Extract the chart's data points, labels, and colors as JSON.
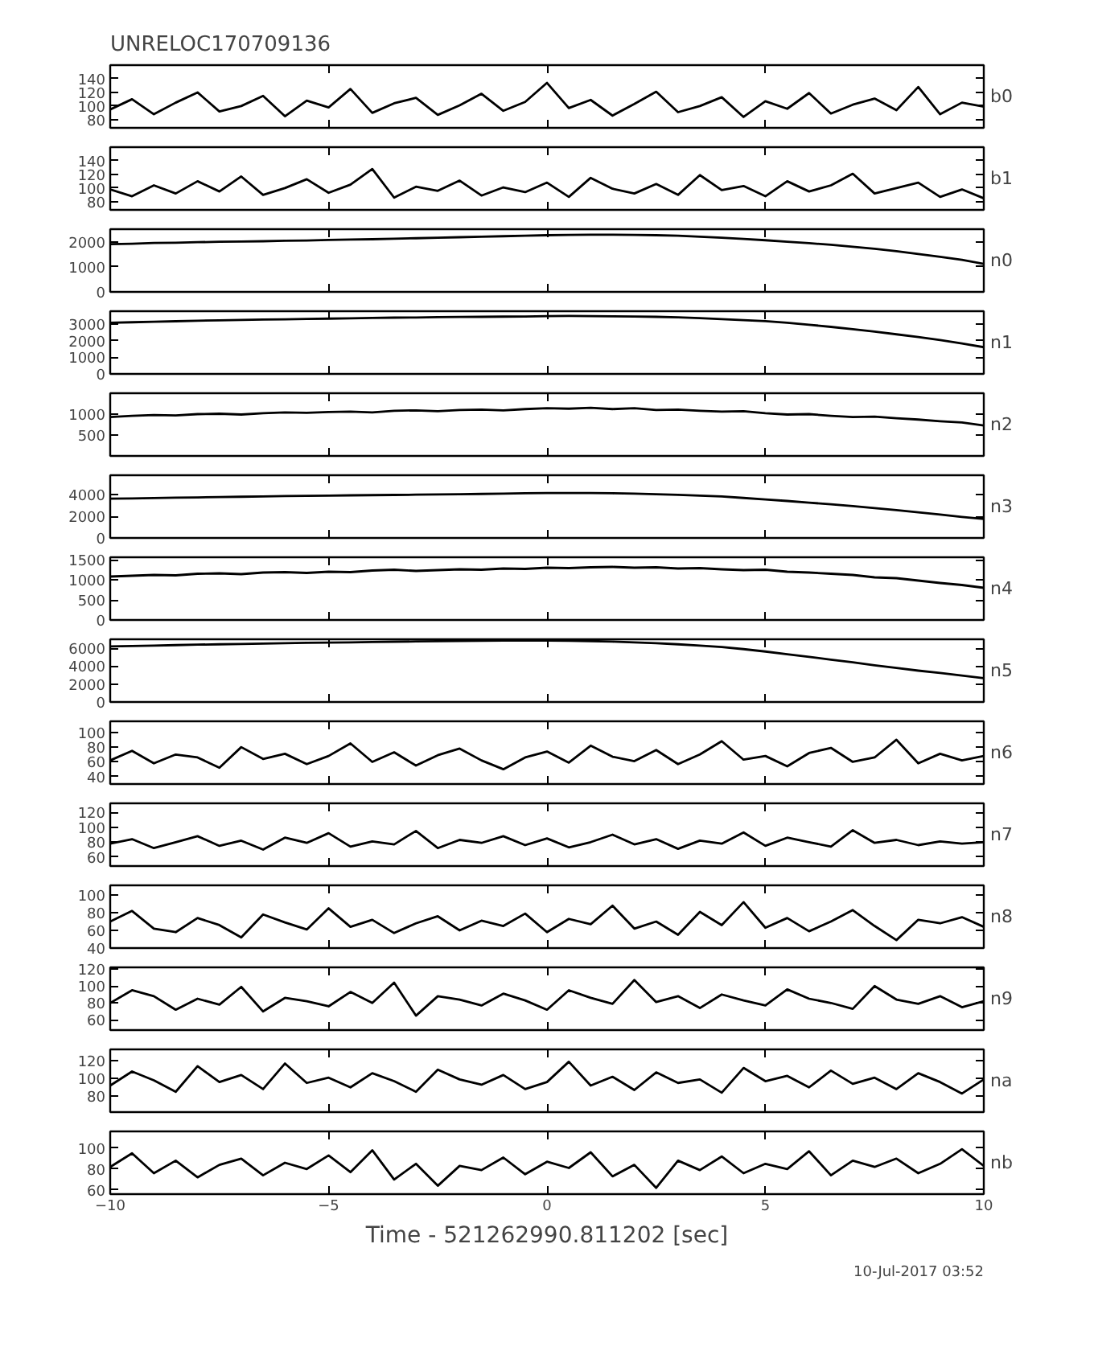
{
  "chart_data": [
    {
      "type": "line",
      "title": "UNRELOC170709136",
      "xlim": [
        -10,
        10
      ],
      "xticks": [
        -10,
        -5,
        0,
        5,
        10
      ],
      "ylim": [
        68,
        160
      ],
      "yticks": [
        80,
        100,
        120,
        140
      ],
      "tick_labels": "y",
      "grid": false,
      "x": [
        -10,
        -9.5,
        -9,
        -8.5,
        -8,
        -7.5,
        -7,
        -6.5,
        -6,
        -5.5,
        -5,
        -4.5,
        -4,
        -3.5,
        -3,
        -2.5,
        -2,
        -1.5,
        -1,
        -0.5,
        0,
        0.5,
        1,
        1.5,
        2,
        2.5,
        3,
        3.5,
        4,
        4.5,
        5,
        5.5,
        6,
        6.5,
        7,
        7.5,
        8,
        8.5,
        9,
        9.5,
        10
      ],
      "series": [
        {
          "name": "b0",
          "color": "#000000",
          "values": [
            95,
            110,
            88,
            105,
            120,
            92,
            100,
            115,
            85,
            108,
            98,
            125,
            90,
            104,
            112,
            87,
            101,
            118,
            93,
            106,
            134,
            97,
            109,
            86,
            103,
            121,
            91,
            100,
            113,
            84,
            107,
            96,
            119,
            89,
            102,
            111,
            94,
            128,
            88,
            105,
            99
          ]
        }
      ]
    },
    {
      "type": "line",
      "xlim": [
        -10,
        10
      ],
      "xticks": [
        -10,
        -5,
        0,
        5,
        10
      ],
      "ylim": [
        68,
        160
      ],
      "yticks": [
        80,
        100,
        120,
        140
      ],
      "tick_labels": "y",
      "grid": false,
      "x": [
        -10,
        -9.5,
        -9,
        -8.5,
        -8,
        -7.5,
        -7,
        -6.5,
        -6,
        -5.5,
        -5,
        -4.5,
        -4,
        -3.5,
        -3,
        -2.5,
        -2,
        -1.5,
        -1,
        -0.5,
        0,
        0.5,
        1,
        1.5,
        2,
        2.5,
        3,
        3.5,
        4,
        4.5,
        5,
        5.5,
        6,
        6.5,
        7,
        7.5,
        8,
        8.5,
        9,
        9.5,
        10
      ],
      "series": [
        {
          "name": "b1",
          "color": "#000000",
          "values": [
            98,
            88,
            104,
            92,
            110,
            95,
            117,
            90,
            100,
            113,
            93,
            105,
            128,
            86,
            102,
            96,
            111,
            89,
            101,
            94,
            108,
            87,
            115,
            99,
            92,
            106,
            90,
            119,
            97,
            103,
            88,
            110,
            95,
            104,
            121,
            92,
            100,
            108,
            87,
            98,
            85
          ]
        }
      ]
    },
    {
      "type": "line",
      "xlim": [
        -10,
        10
      ],
      "xticks": [
        -10,
        -5,
        0,
        5,
        10
      ],
      "ylim": [
        0,
        2500
      ],
      "yticks": [
        0,
        1000,
        2000
      ],
      "tick_labels": "y",
      "grid": false,
      "x": [
        -10,
        -9.5,
        -9,
        -8.5,
        -8,
        -7.5,
        -7,
        -6.5,
        -6,
        -5.5,
        -5,
        -4.5,
        -4,
        -3.5,
        -3,
        -2.5,
        -2,
        -1.5,
        -1,
        -0.5,
        0,
        0.5,
        1,
        1.5,
        2,
        2.5,
        3,
        3.5,
        4,
        4.5,
        5,
        5.5,
        6,
        6.5,
        7,
        7.5,
        8,
        8.5,
        9,
        9.5,
        10
      ],
      "series": [
        {
          "name": "n0",
          "color": "#000000",
          "values": [
            1900,
            1920,
            1950,
            1960,
            1980,
            2000,
            2010,
            2020,
            2040,
            2050,
            2070,
            2090,
            2100,
            2120,
            2140,
            2160,
            2180,
            2200,
            2220,
            2240,
            2260,
            2270,
            2280,
            2280,
            2270,
            2260,
            2240,
            2200,
            2160,
            2110,
            2060,
            2000,
            1940,
            1880,
            1800,
            1720,
            1620,
            1510,
            1400,
            1280,
            1120
          ]
        }
      ]
    },
    {
      "type": "line",
      "xlim": [
        -10,
        10
      ],
      "xticks": [
        -10,
        -5,
        0,
        5,
        10
      ],
      "ylim": [
        0,
        3800
      ],
      "yticks": [
        0,
        1000,
        2000,
        3000
      ],
      "tick_labels": "y",
      "grid": false,
      "x": [
        -10,
        -9.5,
        -9,
        -8.5,
        -8,
        -7.5,
        -7,
        -6.5,
        -6,
        -5.5,
        -5,
        -4.5,
        -4,
        -3.5,
        -3,
        -2.5,
        -2,
        -1.5,
        -1,
        -0.5,
        0,
        0.5,
        1,
        1.5,
        2,
        2.5,
        3,
        3.5,
        4,
        4.5,
        5,
        5.5,
        6,
        6.5,
        7,
        7.5,
        8,
        8.5,
        9,
        9.5,
        10
      ],
      "series": [
        {
          "name": "n1",
          "color": "#000000",
          "values": [
            3100,
            3130,
            3160,
            3190,
            3220,
            3250,
            3270,
            3290,
            3310,
            3330,
            3350,
            3370,
            3390,
            3410,
            3420,
            3440,
            3450,
            3460,
            3470,
            3480,
            3500,
            3510,
            3500,
            3490,
            3480,
            3460,
            3430,
            3380,
            3320,
            3260,
            3200,
            3100,
            2980,
            2850,
            2710,
            2560,
            2400,
            2230,
            2050,
            1850,
            1620
          ]
        }
      ]
    },
    {
      "type": "line",
      "xlim": [
        -10,
        10
      ],
      "xticks": [
        -10,
        -5,
        0,
        5,
        10
      ],
      "ylim": [
        0,
        1500
      ],
      "yticks": [
        500,
        1000
      ],
      "tick_labels": "y",
      "grid": false,
      "x": [
        -10,
        -9.5,
        -9,
        -8.5,
        -8,
        -7.5,
        -7,
        -6.5,
        -6,
        -5.5,
        -5,
        -4.5,
        -4,
        -3.5,
        -3,
        -2.5,
        -2,
        -1.5,
        -1,
        -0.5,
        0,
        0.5,
        1,
        1.5,
        2,
        2.5,
        3,
        3.5,
        4,
        4.5,
        5,
        5.5,
        6,
        6.5,
        7,
        7.5,
        8,
        8.5,
        9,
        9.5,
        10
      ],
      "series": [
        {
          "name": "n2",
          "color": "#000000",
          "values": [
            930,
            960,
            980,
            970,
            1000,
            1010,
            990,
            1020,
            1040,
            1030,
            1050,
            1060,
            1040,
            1080,
            1090,
            1070,
            1100,
            1110,
            1090,
            1120,
            1140,
            1130,
            1150,
            1120,
            1140,
            1100,
            1110,
            1080,
            1060,
            1070,
            1020,
            990,
            1000,
            960,
            930,
            940,
            900,
            870,
            830,
            800,
            730
          ]
        }
      ]
    },
    {
      "type": "line",
      "xlim": [
        -10,
        10
      ],
      "xticks": [
        -10,
        -5,
        0,
        5,
        10
      ],
      "ylim": [
        0,
        5800
      ],
      "yticks": [
        0,
        2000,
        4000
      ],
      "tick_labels": "y",
      "grid": false,
      "x": [
        -10,
        -9.5,
        -9,
        -8.5,
        -8,
        -7.5,
        -7,
        -6.5,
        -6,
        -5.5,
        -5,
        -4.5,
        -4,
        -3.5,
        -3,
        -2.5,
        -2,
        -1.5,
        -1,
        -0.5,
        0,
        0.5,
        1,
        1.5,
        2,
        2.5,
        3,
        3.5,
        4,
        4.5,
        5,
        5.5,
        6,
        6.5,
        7,
        7.5,
        8,
        8.5,
        9,
        9.5,
        10
      ],
      "series": [
        {
          "name": "n3",
          "color": "#000000",
          "values": [
            3630,
            3660,
            3690,
            3720,
            3750,
            3780,
            3810,
            3840,
            3870,
            3900,
            3920,
            3940,
            3960,
            3980,
            4000,
            4020,
            4040,
            4070,
            4100,
            4130,
            4160,
            4160,
            4150,
            4130,
            4100,
            4050,
            3990,
            3920,
            3840,
            3700,
            3560,
            3420,
            3270,
            3110,
            2940,
            2760,
            2570,
            2370,
            2160,
            1950,
            1760
          ]
        }
      ]
    },
    {
      "type": "line",
      "xlim": [
        -10,
        10
      ],
      "xticks": [
        -10,
        -5,
        0,
        5,
        10
      ],
      "ylim": [
        0,
        1560
      ],
      "yticks": [
        0,
        500,
        1000,
        1500
      ],
      "tick_labels": "y",
      "grid": false,
      "x": [
        -10,
        -9.5,
        -9,
        -8.5,
        -8,
        -7.5,
        -7,
        -6.5,
        -6,
        -5.5,
        -5,
        -4.5,
        -4,
        -3.5,
        -3,
        -2.5,
        -2,
        -1.5,
        -1,
        -0.5,
        0,
        0.5,
        1,
        1.5,
        2,
        2.5,
        3,
        3.5,
        4,
        4.5,
        5,
        5.5,
        6,
        6.5,
        7,
        7.5,
        8,
        8.5,
        9,
        9.5,
        10
      ],
      "series": [
        {
          "name": "n4",
          "color": "#000000",
          "values": [
            1080,
            1100,
            1120,
            1110,
            1150,
            1160,
            1140,
            1180,
            1190,
            1170,
            1200,
            1190,
            1230,
            1250,
            1220,
            1240,
            1260,
            1250,
            1280,
            1270,
            1300,
            1290,
            1310,
            1320,
            1300,
            1310,
            1280,
            1290,
            1260,
            1240,
            1250,
            1200,
            1180,
            1150,
            1120,
            1060,
            1040,
            980,
            920,
            870,
            800
          ]
        }
      ]
    },
    {
      "type": "line",
      "xlim": [
        -10,
        10
      ],
      "xticks": [
        -10,
        -5,
        0,
        5,
        10
      ],
      "ylim": [
        0,
        7000
      ],
      "yticks": [
        0,
        2000,
        4000,
        6000
      ],
      "tick_labels": "y",
      "grid": false,
      "x": [
        -10,
        -9.5,
        -9,
        -8.5,
        -8,
        -7.5,
        -7,
        -6.5,
        -6,
        -5.5,
        -5,
        -4.5,
        -4,
        -3.5,
        -3,
        -2.5,
        -2,
        -1.5,
        -1,
        -0.5,
        0,
        0.5,
        1,
        1.5,
        2,
        2.5,
        3,
        3.5,
        4,
        4.5,
        5,
        5.5,
        6,
        6.5,
        7,
        7.5,
        8,
        8.5,
        9,
        9.5,
        10
      ],
      "series": [
        {
          "name": "n5",
          "color": "#000000",
          "values": [
            6200,
            6250,
            6300,
            6350,
            6400,
            6440,
            6480,
            6520,
            6560,
            6600,
            6630,
            6660,
            6700,
            6730,
            6760,
            6790,
            6820,
            6840,
            6850,
            6850,
            6850,
            6830,
            6800,
            6740,
            6650,
            6560,
            6440,
            6300,
            6130,
            5900,
            5630,
            5330,
            5030,
            4730,
            4430,
            4100,
            3800,
            3500,
            3250,
            2950,
            2650
          ]
        }
      ]
    },
    {
      "type": "line",
      "xlim": [
        -10,
        10
      ],
      "xticks": [
        -10,
        -5,
        0,
        5,
        10
      ],
      "ylim": [
        30,
        115
      ],
      "yticks": [
        40,
        60,
        80,
        100
      ],
      "tick_labels": "y",
      "grid": false,
      "x": [
        -10,
        -9.5,
        -9,
        -8.5,
        -8,
        -7.5,
        -7,
        -6.5,
        -6,
        -5.5,
        -5,
        -4.5,
        -4,
        -3.5,
        -3,
        -2.5,
        -2,
        -1.5,
        -1,
        -0.5,
        0,
        0.5,
        1,
        1.5,
        2,
        2.5,
        3,
        3.5,
        4,
        4.5,
        5,
        5.5,
        6,
        6.5,
        7,
        7.5,
        8,
        8.5,
        9,
        9.5,
        10
      ],
      "series": [
        {
          "name": "n6",
          "color": "#000000",
          "values": [
            62,
            75,
            58,
            70,
            66,
            52,
            80,
            64,
            71,
            57,
            68,
            85,
            60,
            73,
            55,
            69,
            78,
            62,
            50,
            66,
            74,
            59,
            82,
            67,
            61,
            76,
            57,
            70,
            88,
            63,
            68,
            54,
            72,
            79,
            60,
            66,
            90,
            58,
            71,
            62,
            68
          ]
        }
      ]
    },
    {
      "type": "line",
      "xlim": [
        -10,
        10
      ],
      "xticks": [
        -10,
        -5,
        0,
        5,
        10
      ],
      "ylim": [
        48,
        132
      ],
      "yticks": [
        60,
        80,
        100,
        120
      ],
      "tick_labels": "y",
      "grid": false,
      "x": [
        -10,
        -9.5,
        -9,
        -8.5,
        -8,
        -7.5,
        -7,
        -6.5,
        -6,
        -5.5,
        -5,
        -4.5,
        -4,
        -3.5,
        -3,
        -2.5,
        -2,
        -1.5,
        -1,
        -0.5,
        0,
        0.5,
        1,
        1.5,
        2,
        2.5,
        3,
        3.5,
        4,
        4.5,
        5,
        5.5,
        6,
        6.5,
        7,
        7.5,
        8,
        8.5,
        9,
        9.5,
        10
      ],
      "series": [
        {
          "name": "n7",
          "color": "#000000",
          "values": [
            78,
            84,
            72,
            80,
            88,
            75,
            82,
            70,
            86,
            79,
            92,
            74,
            81,
            77,
            95,
            72,
            83,
            79,
            88,
            76,
            85,
            73,
            80,
            90,
            77,
            84,
            71,
            82,
            78,
            93,
            75,
            86,
            80,
            74,
            96,
            79,
            83,
            76,
            81,
            78,
            80
          ]
        }
      ]
    },
    {
      "type": "line",
      "xlim": [
        -10,
        10
      ],
      "xticks": [
        -10,
        -5,
        0,
        5,
        10
      ],
      "ylim": [
        40,
        111
      ],
      "yticks": [
        40,
        60,
        80,
        100
      ],
      "tick_labels": "y",
      "grid": false,
      "x": [
        -10,
        -9.5,
        -9,
        -8.5,
        -8,
        -7.5,
        -7,
        -6.5,
        -6,
        -5.5,
        -5,
        -4.5,
        -4,
        -3.5,
        -3,
        -2.5,
        -2,
        -1.5,
        -1,
        -0.5,
        0,
        0.5,
        1,
        1.5,
        2,
        2.5,
        3,
        3.5,
        4,
        4.5,
        5,
        5.5,
        6,
        6.5,
        7,
        7.5,
        8,
        8.5,
        9,
        9.5,
        10
      ],
      "series": [
        {
          "name": "n8",
          "color": "#000000",
          "values": [
            70,
            82,
            62,
            58,
            74,
            66,
            52,
            78,
            69,
            61,
            85,
            64,
            72,
            57,
            68,
            76,
            60,
            71,
            65,
            79,
            58,
            73,
            67,
            88,
            62,
            70,
            55,
            81,
            66,
            92,
            63,
            74,
            59,
            70,
            83,
            65,
            49,
            72,
            68,
            75,
            64
          ]
        }
      ]
    },
    {
      "type": "line",
      "xlim": [
        -10,
        10
      ],
      "xticks": [
        -10,
        -5,
        0,
        5,
        10
      ],
      "ylim": [
        48,
        122
      ],
      "yticks": [
        60,
        80,
        100,
        120
      ],
      "tick_labels": "y",
      "grid": false,
      "x": [
        -10,
        -9.5,
        -9,
        -8.5,
        -8,
        -7.5,
        -7,
        -6.5,
        -6,
        -5.5,
        -5,
        -4.5,
        -4,
        -3.5,
        -3,
        -2.5,
        -2,
        -1.5,
        -1,
        -0.5,
        0,
        0.5,
        1,
        1.5,
        2,
        2.5,
        3,
        3.5,
        4,
        4.5,
        5,
        5.5,
        6,
        6.5,
        7,
        7.5,
        8,
        8.5,
        9,
        9.5,
        10
      ],
      "series": [
        {
          "name": "n9",
          "color": "#000000",
          "values": [
            80,
            95,
            88,
            72,
            85,
            78,
            99,
            70,
            86,
            82,
            76,
            93,
            80,
            104,
            65,
            88,
            84,
            77,
            91,
            83,
            72,
            95,
            86,
            79,
            107,
            81,
            88,
            74,
            90,
            83,
            77,
            96,
            85,
            80,
            73,
            100,
            84,
            79,
            88,
            75,
            82
          ]
        }
      ]
    },
    {
      "type": "line",
      "xlim": [
        -10,
        10
      ],
      "xticks": [
        -10,
        -5,
        0,
        5,
        10
      ],
      "ylim": [
        62,
        133
      ],
      "yticks": [
        80,
        100,
        120
      ],
      "tick_labels": "y",
      "grid": false,
      "x": [
        -10,
        -9.5,
        -9,
        -8.5,
        -8,
        -7.5,
        -7,
        -6.5,
        -6,
        -5.5,
        -5,
        -4.5,
        -4,
        -3.5,
        -3,
        -2.5,
        -2,
        -1.5,
        -1,
        -0.5,
        0,
        0.5,
        1,
        1.5,
        2,
        2.5,
        3,
        3.5,
        4,
        4.5,
        5,
        5.5,
        6,
        6.5,
        7,
        7.5,
        8,
        8.5,
        9,
        9.5,
        10
      ],
      "series": [
        {
          "name": "na",
          "color": "#000000",
          "values": [
            92,
            108,
            98,
            85,
            114,
            96,
            104,
            88,
            117,
            95,
            101,
            90,
            106,
            97,
            85,
            110,
            99,
            93,
            104,
            88,
            96,
            119,
            92,
            102,
            87,
            107,
            95,
            99,
            84,
            112,
            97,
            103,
            90,
            109,
            94,
            101,
            88,
            106,
            96,
            83,
            99
          ]
        }
      ]
    },
    {
      "type": "line",
      "xlabel": "Time - 521262990.811202 [sec]",
      "annotations": [
        "10-Jul-2017 03:52"
      ],
      "xlim": [
        -10,
        10
      ],
      "xticks": [
        -10,
        -5,
        0,
        5,
        10
      ],
      "ylim": [
        56,
        116
      ],
      "yticks": [
        60,
        80,
        100
      ],
      "grid": false,
      "x": [
        -10,
        -9.5,
        -9,
        -8.5,
        -8,
        -7.5,
        -7,
        -6.5,
        -6,
        -5.5,
        -5,
        -4.5,
        -4,
        -3.5,
        -3,
        -2.5,
        -2,
        -1.5,
        -1,
        -0.5,
        0,
        0.5,
        1,
        1.5,
        2,
        2.5,
        3,
        3.5,
        4,
        4.5,
        5,
        5.5,
        6,
        6.5,
        7,
        7.5,
        8,
        8.5,
        9,
        9.5,
        10
      ],
      "series": [
        {
          "name": "nb",
          "color": "#000000",
          "values": [
            82,
            95,
            76,
            88,
            72,
            84,
            90,
            74,
            86,
            80,
            93,
            77,
            98,
            70,
            85,
            64,
            83,
            79,
            91,
            75,
            87,
            81,
            96,
            73,
            84,
            62,
            88,
            79,
            92,
            76,
            85,
            80,
            97,
            74,
            88,
            82,
            90,
            76,
            85,
            99,
            83
          ]
        }
      ]
    }
  ]
}
